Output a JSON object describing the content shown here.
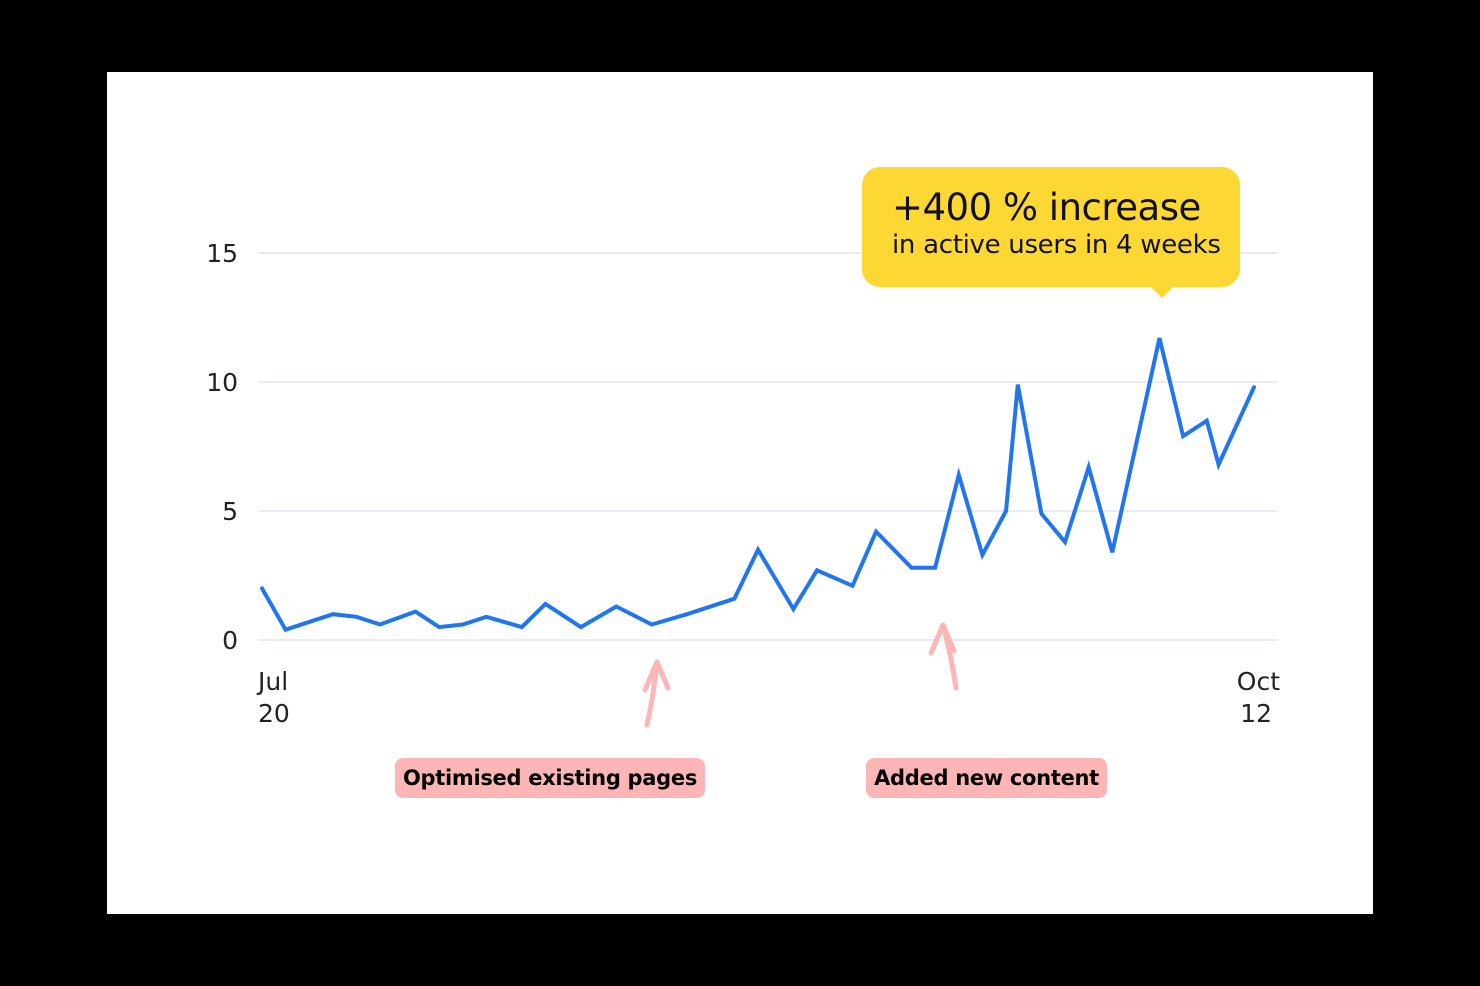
{
  "chart_data": {
    "type": "line",
    "title": "",
    "xlabel": "",
    "ylabel": "",
    "ylim": [
      0,
      15
    ],
    "yticks": [
      0,
      5,
      10,
      15
    ],
    "grid": true,
    "x_range": [
      "07-20",
      "10-12"
    ],
    "xtick_labels": [
      {
        "month": "Jul",
        "day": "20"
      },
      {
        "month": "Oct",
        "day": "12"
      }
    ],
    "line_color": "#2176f0",
    "x": [
      "07-20",
      "07-22",
      "07-26",
      "07-28",
      "07-30",
      "08-02",
      "08-04",
      "08-06",
      "08-08",
      "08-11",
      "08-13",
      "08-16",
      "08-19",
      "08-22",
      "08-25",
      "08-29",
      "08-31",
      "09-03",
      "09-05",
      "09-08",
      "09-10",
      "09-13",
      "09-15",
      "09-17",
      "09-19",
      "09-21",
      "09-22",
      "09-24",
      "09-26",
      "09-28",
      "09-30",
      "10-04",
      "10-06",
      "10-08",
      "10-09",
      "10-12"
    ],
    "values": [
      2.0,
      0.4,
      1.0,
      0.9,
      0.6,
      1.1,
      0.5,
      0.6,
      0.9,
      0.5,
      1.4,
      0.5,
      1.3,
      0.6,
      1.0,
      1.6,
      3.5,
      1.2,
      2.7,
      2.1,
      4.2,
      2.8,
      2.8,
      6.4,
      3.3,
      5.0,
      9.9,
      4.9,
      3.8,
      6.7,
      3.4,
      11.7,
      7.9,
      8.5,
      6.8,
      9.8
    ],
    "annotations": {
      "callout": {
        "headline": "+400 % increase",
        "subtext": "in active users in 4 weeks",
        "color": "#fdd835",
        "points_to": "10-04"
      },
      "markers": [
        {
          "label": "Optimised existing pages",
          "at": "08-22",
          "color": "#fdb5b5"
        },
        {
          "label": "Added new content",
          "at": "09-15",
          "color": "#fdb5b5"
        }
      ]
    }
  }
}
